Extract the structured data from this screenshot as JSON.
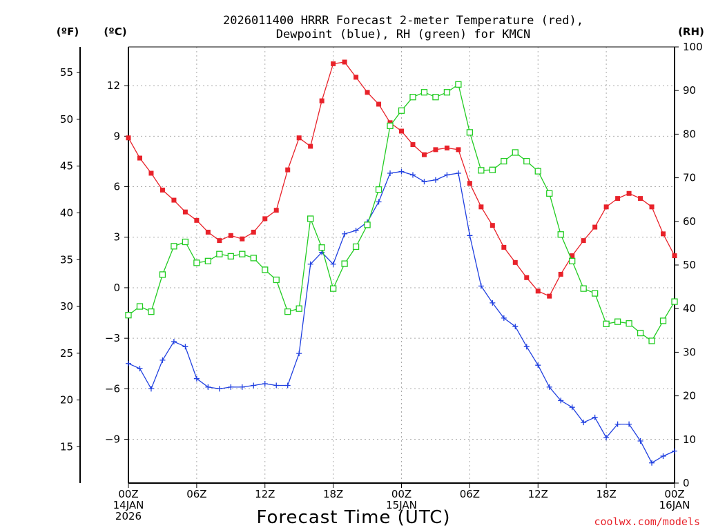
{
  "chart_data": {
    "type": "line",
    "title_line1": "2026011400 HRRR Forecast 2-meter Temperature (red),",
    "title_line2": "Dewpoint (blue), RH (green) for KMCN",
    "units": {
      "fahrenheit": "(ºF)",
      "celsius": "(ºC)",
      "rh": "(RH)"
    },
    "xlabel": "Forecast Time (UTC)",
    "credit": "coolwx.com/models",
    "x_ticks": [
      {
        "hour": 0,
        "lines": [
          "00Z",
          "14JAN",
          "2026"
        ]
      },
      {
        "hour": 6,
        "lines": [
          "06Z"
        ]
      },
      {
        "hour": 12,
        "lines": [
          "12Z"
        ]
      },
      {
        "hour": 18,
        "lines": [
          "18Z"
        ]
      },
      {
        "hour": 24,
        "lines": [
          "00Z",
          "15JAN"
        ]
      },
      {
        "hour": 30,
        "lines": [
          "06Z"
        ]
      },
      {
        "hour": 36,
        "lines": [
          "12Z"
        ]
      },
      {
        "hour": 42,
        "lines": [
          "18Z"
        ]
      },
      {
        "hour": 48,
        "lines": [
          "00Z",
          "16JAN"
        ]
      }
    ],
    "x_range": [
      0,
      48
    ],
    "celsius_range": [
      -11.6,
      14.3
    ],
    "celsius_ticks": [
      -9,
      -6,
      -3,
      0,
      3,
      6,
      9,
      12
    ],
    "fahrenheit_ticks": [
      15,
      20,
      25,
      30,
      35,
      40,
      45,
      50,
      55
    ],
    "rh_range": [
      0,
      100
    ],
    "rh_ticks": [
      0,
      10,
      20,
      30,
      40,
      50,
      60,
      70,
      80,
      90,
      100
    ],
    "grid": true,
    "series": [
      {
        "name": "Temperature",
        "axis": "celsius",
        "color": "#e8222a",
        "marker": "filled-square",
        "values": [
          8.9,
          7.7,
          6.8,
          5.8,
          5.2,
          4.5,
          4.0,
          3.3,
          2.8,
          3.1,
          2.9,
          3.3,
          4.1,
          4.6,
          7.0,
          8.9,
          8.4,
          11.1,
          13.3,
          13.4,
          12.5,
          11.6,
          10.9,
          9.8,
          9.3,
          8.5,
          7.9,
          8.2,
          8.3,
          8.2,
          6.2,
          4.8,
          3.7,
          2.4,
          1.5,
          0.6,
          -0.2,
          -0.5,
          0.8,
          1.9,
          2.8,
          3.6,
          4.8,
          5.3,
          5.6,
          5.3,
          4.8,
          3.2,
          1.9
        ],
        "note": "values are interpreted on celsius axis"
      },
      {
        "name": "Dewpoint",
        "axis": "celsius",
        "color": "#2040e0",
        "marker": "plus",
        "values": [
          -4.5,
          -4.8,
          -6.0,
          -4.3,
          -3.2,
          -3.5,
          -5.4,
          -5.9,
          -6.0,
          -5.9,
          -5.9,
          -5.8,
          -5.7,
          -5.8,
          -5.8,
          -3.9,
          1.4,
          2.1,
          1.4,
          3.2,
          3.4,
          3.9,
          5.1,
          6.8,
          6.9,
          6.7,
          6.3,
          6.4,
          6.7,
          6.8,
          3.1,
          0.1,
          -0.9,
          -1.8,
          -2.3,
          -3.5,
          -4.6,
          -5.9,
          -6.7,
          -7.1,
          -8.0,
          -7.7,
          -8.9,
          -8.1,
          -8.1,
          -9.1,
          -10.4,
          -10.0,
          -9.7
        ]
      },
      {
        "name": "RH",
        "axis": "rh",
        "color": "#22cc22",
        "marker": "open-square",
        "values": [
          38.5,
          40.5,
          39.3,
          47.8,
          54.3,
          55.3,
          50.5,
          50.9,
          52.5,
          52.0,
          52.5,
          51.6,
          48.9,
          46.6,
          39.3,
          40.0,
          60.6,
          54.0,
          44.6,
          50.3,
          54.2,
          59.2,
          67.3,
          81.9,
          85.4,
          88.5,
          89.6,
          88.5,
          89.6,
          91.4,
          80.4,
          71.7,
          71.8,
          73.8,
          75.8,
          73.8,
          71.5,
          66.4,
          57.0,
          50.9,
          44.6,
          43.5,
          36.5,
          37.0,
          36.6,
          34.4,
          32.6,
          37.2,
          41.6
        ]
      }
    ]
  }
}
